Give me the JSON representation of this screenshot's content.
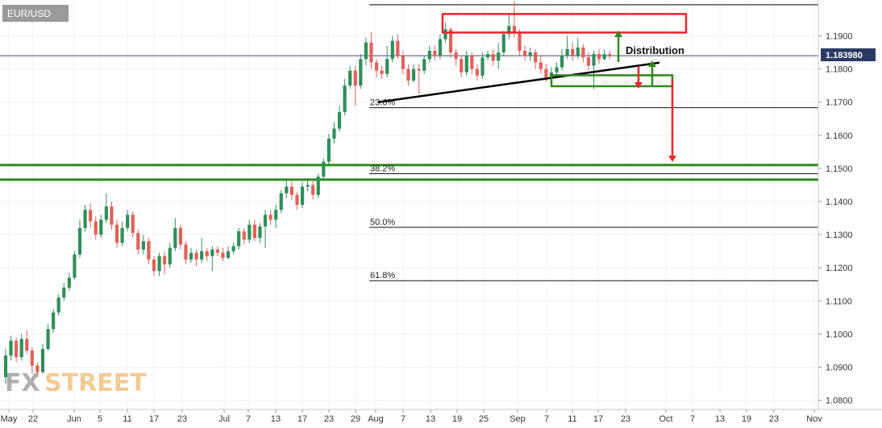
{
  "symbol": "EUR/USD",
  "current_price": "1.183980",
  "annotation": "Distribution",
  "logo": {
    "part1": "FX",
    "part2": "STREET"
  },
  "colors": {
    "up": "#26a69a",
    "up_dark": "#2f8f5b",
    "down": "#e0625a",
    "green_zone": "#2e8b1a",
    "red_zone": "#e8262c",
    "trend": "#000000"
  },
  "chart_data": {
    "type": "candlestick",
    "title": "",
    "xlabel": "",
    "ylabel": "",
    "ylim": [
      1.0775,
      1.2005
    ],
    "y_ticks": [
      "1.1900",
      "1.1800",
      "1.1700",
      "1.1600",
      "1.1500",
      "1.1400",
      "1.1300",
      "1.1200",
      "1.1100",
      "1.1000",
      "1.0900",
      "1.0800"
    ],
    "x_ticks": [
      "May",
      "22",
      "Jun",
      "5",
      "11",
      "17",
      "23",
      "Jul",
      "7",
      "13",
      "17",
      "23",
      "29",
      "Aug",
      "7",
      "13",
      "19",
      "25",
      "Sep",
      "7",
      "11",
      "17",
      "23",
      "Oct",
      "7",
      "13",
      "19",
      "23",
      "Nov"
    ],
    "fibonacci": [
      {
        "label": "23.6%",
        "value": 1.1683
      },
      {
        "label": "38.2%",
        "value": 1.1484
      },
      {
        "label": "50.0%",
        "value": 1.1322
      },
      {
        "label": "61.8%",
        "value": 1.1161
      }
    ],
    "horizontal_lines": [
      {
        "value": 1.1994,
        "color": "#000000"
      },
      {
        "value": 1.184,
        "color": "#3a4a7a"
      },
      {
        "value": 1.151,
        "color": "#2e8b1a"
      },
      {
        "value": 1.1466,
        "color": "#2e8b1a"
      }
    ],
    "trendline": {
      "from": {
        "date": "Aug 1",
        "price": 1.17
      },
      "to": {
        "date": "Oct 1",
        "price": 1.1819
      }
    },
    "zones": [
      {
        "kind": "resistance",
        "price_top": 1.1966,
        "price_bottom": 1.191
      },
      {
        "kind": "support",
        "price_top": 1.1781,
        "price_bottom": 1.1748
      }
    ],
    "candles": [
      [
        1.087,
        1.0935,
        1.085,
        1.0955
      ],
      [
        1.0935,
        1.098,
        1.092,
        1.0995
      ],
      [
        1.098,
        1.093,
        1.0915,
        1.099
      ],
      [
        1.093,
        1.0985,
        1.092,
        1.1
      ],
      [
        1.0985,
        1.095,
        1.094,
        1.101
      ],
      [
        1.095,
        1.0905,
        1.088,
        1.096
      ],
      [
        1.0905,
        1.0885,
        1.087,
        1.0915
      ],
      [
        1.0885,
        1.0955,
        1.088,
        1.097
      ],
      [
        1.0955,
        1.1015,
        1.095,
        1.103
      ],
      [
        1.1015,
        1.1065,
        1.1005,
        1.1075
      ],
      [
        1.1065,
        1.111,
        1.1055,
        1.112
      ],
      [
        1.111,
        1.114,
        1.11,
        1.1155
      ],
      [
        1.114,
        1.117,
        1.113,
        1.1185
      ],
      [
        1.117,
        1.124,
        1.1165,
        1.125
      ],
      [
        1.124,
        1.132,
        1.123,
        1.1345
      ],
      [
        1.132,
        1.1375,
        1.131,
        1.139
      ],
      [
        1.1375,
        1.134,
        1.132,
        1.1395
      ],
      [
        1.134,
        1.13,
        1.1285,
        1.1355
      ],
      [
        1.13,
        1.1345,
        1.129,
        1.136
      ],
      [
        1.1345,
        1.1385,
        1.1335,
        1.1425
      ],
      [
        1.1385,
        1.133,
        1.1315,
        1.14
      ],
      [
        1.133,
        1.1275,
        1.126,
        1.1345
      ],
      [
        1.1275,
        1.132,
        1.1265,
        1.134
      ],
      [
        1.132,
        1.136,
        1.131,
        1.1375
      ],
      [
        1.136,
        1.1305,
        1.129,
        1.137
      ],
      [
        1.1305,
        1.1255,
        1.124,
        1.1315
      ],
      [
        1.1255,
        1.128,
        1.124,
        1.13
      ],
      [
        1.128,
        1.1225,
        1.121,
        1.129
      ],
      [
        1.1225,
        1.119,
        1.1175,
        1.1235
      ],
      [
        1.119,
        1.1235,
        1.1175,
        1.1245
      ],
      [
        1.1235,
        1.121,
        1.118,
        1.125
      ],
      [
        1.121,
        1.126,
        1.12,
        1.1275
      ],
      [
        1.126,
        1.132,
        1.125,
        1.135
      ],
      [
        1.132,
        1.127,
        1.1255,
        1.133
      ],
      [
        1.127,
        1.1225,
        1.121,
        1.128
      ],
      [
        1.1225,
        1.1245,
        1.1215,
        1.126
      ],
      [
        1.1245,
        1.1225,
        1.1205,
        1.1255
      ],
      [
        1.1225,
        1.125,
        1.1215,
        1.129
      ],
      [
        1.125,
        1.1235,
        1.122,
        1.126
      ],
      [
        1.1235,
        1.1255,
        1.119,
        1.1265
      ],
      [
        1.1255,
        1.1245,
        1.1235,
        1.1265
      ],
      [
        1.1245,
        1.123,
        1.122,
        1.126
      ],
      [
        1.123,
        1.125,
        1.1225,
        1.1265
      ],
      [
        1.125,
        1.1265,
        1.124,
        1.1275
      ],
      [
        1.1265,
        1.131,
        1.1255,
        1.132
      ],
      [
        1.131,
        1.1285,
        1.127,
        1.132
      ],
      [
        1.1285,
        1.133,
        1.1275,
        1.1345
      ],
      [
        1.133,
        1.129,
        1.128,
        1.1345
      ],
      [
        1.129,
        1.1325,
        1.1275,
        1.1335
      ],
      [
        1.1325,
        1.136,
        1.126,
        1.1375
      ],
      [
        1.136,
        1.1345,
        1.133,
        1.1375
      ],
      [
        1.1345,
        1.1375,
        1.132,
        1.139
      ],
      [
        1.1375,
        1.1425,
        1.1365,
        1.1435
      ],
      [
        1.1425,
        1.1445,
        1.141,
        1.1465
      ],
      [
        1.1445,
        1.142,
        1.1405,
        1.146
      ],
      [
        1.142,
        1.139,
        1.1375,
        1.143
      ],
      [
        1.139,
        1.1445,
        1.138,
        1.146
      ],
      [
        1.1445,
        1.145,
        1.143,
        1.147
      ],
      [
        1.145,
        1.142,
        1.1405,
        1.1465
      ],
      [
        1.142,
        1.1475,
        1.141,
        1.1485
      ],
      [
        1.1475,
        1.152,
        1.1465,
        1.153
      ],
      [
        1.152,
        1.159,
        1.151,
        1.1605
      ],
      [
        1.159,
        1.162,
        1.1575,
        1.164
      ],
      [
        1.162,
        1.167,
        1.161,
        1.169
      ],
      [
        1.167,
        1.175,
        1.166,
        1.177
      ],
      [
        1.175,
        1.1795,
        1.174,
        1.181
      ],
      [
        1.1795,
        1.175,
        1.169,
        1.181
      ],
      [
        1.175,
        1.183,
        1.174,
        1.1845
      ],
      [
        1.183,
        1.188,
        1.181,
        1.1895
      ],
      [
        1.188,
        1.182,
        1.18,
        1.191
      ],
      [
        1.182,
        1.1795,
        1.1775,
        1.183
      ],
      [
        1.1795,
        1.1785,
        1.177,
        1.181
      ],
      [
        1.1785,
        1.183,
        1.1775,
        1.187
      ],
      [
        1.183,
        1.1885,
        1.182,
        1.19
      ],
      [
        1.1885,
        1.184,
        1.183,
        1.1905
      ],
      [
        1.184,
        1.18,
        1.1785,
        1.1855
      ],
      [
        1.18,
        1.1765,
        1.175,
        1.1815
      ],
      [
        1.1765,
        1.18,
        1.176,
        1.1815
      ],
      [
        1.18,
        1.1795,
        1.1725,
        1.1815
      ],
      [
        1.1795,
        1.183,
        1.1785,
        1.184
      ],
      [
        1.183,
        1.1855,
        1.182,
        1.187
      ],
      [
        1.1855,
        1.184,
        1.1825,
        1.187
      ],
      [
        1.184,
        1.189,
        1.183,
        1.1905
      ],
      [
        1.189,
        1.192,
        1.188,
        1.194
      ],
      [
        1.192,
        1.185,
        1.1835,
        1.1925
      ],
      [
        1.185,
        1.183,
        1.181,
        1.186
      ],
      [
        1.183,
        1.179,
        1.1775,
        1.184
      ],
      [
        1.179,
        1.184,
        1.178,
        1.1855
      ],
      [
        1.184,
        1.18,
        1.1785,
        1.185
      ],
      [
        1.18,
        1.178,
        1.1765,
        1.1815
      ],
      [
        1.178,
        1.1835,
        1.177,
        1.185
      ],
      [
        1.1835,
        1.1845,
        1.1825,
        1.1855
      ],
      [
        1.1845,
        1.1825,
        1.181,
        1.186
      ],
      [
        1.1825,
        1.185,
        1.18,
        1.188
      ],
      [
        1.185,
        1.1905,
        1.184,
        1.1915
      ],
      [
        1.1905,
        1.193,
        1.189,
        1.1965
      ],
      [
        1.193,
        1.191,
        1.1895,
        1.2005
      ],
      [
        1.191,
        1.1855,
        1.184,
        1.192
      ],
      [
        1.1855,
        1.184,
        1.1825,
        1.187
      ],
      [
        1.184,
        1.185,
        1.1825,
        1.1865
      ],
      [
        1.185,
        1.182,
        1.18,
        1.186
      ],
      [
        1.182,
        1.18,
        1.1785,
        1.184
      ],
      [
        1.18,
        1.1775,
        1.176,
        1.1815
      ],
      [
        1.1775,
        1.179,
        1.176,
        1.1805
      ],
      [
        1.179,
        1.1805,
        1.1775,
        1.182
      ],
      [
        1.1805,
        1.184,
        1.1795,
        1.186
      ],
      [
        1.184,
        1.186,
        1.183,
        1.19
      ],
      [
        1.186,
        1.184,
        1.1825,
        1.188
      ],
      [
        1.184,
        1.1865,
        1.183,
        1.1895
      ],
      [
        1.1865,
        1.1835,
        1.182,
        1.1875
      ],
      [
        1.1835,
        1.181,
        1.1795,
        1.185
      ],
      [
        1.181,
        1.1845,
        1.174,
        1.1855
      ],
      [
        1.1845,
        1.183,
        1.1815,
        1.186
      ],
      [
        1.183,
        1.1845,
        1.1825,
        1.186
      ],
      [
        1.1845,
        1.184,
        1.183,
        1.1855
      ]
    ]
  }
}
